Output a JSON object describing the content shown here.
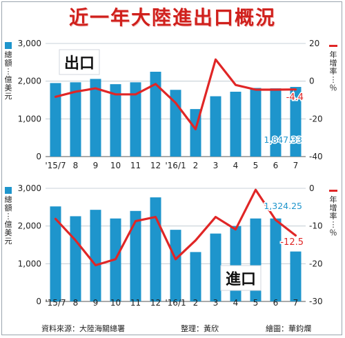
{
  "title": "近一年大陸進出口概況",
  "footer": {
    "source": "資料來源：大陸海關總署",
    "editor": "整理：黃欣",
    "artist": "繪圖：華鈞爛"
  },
  "legend": {
    "bar_label": "總額：億美元",
    "line_label": "年增率：％"
  },
  "colors": {
    "bar": "#1e95cc",
    "line": "#e02626",
    "title": "#d0201c"
  },
  "chart_data": [
    {
      "type": "bar",
      "title": "出口",
      "categories": [
        "'15/7",
        "8",
        "9",
        "10",
        "11",
        "12",
        "'16/1",
        "2",
        "3",
        "4",
        "5",
        "6",
        "7"
      ],
      "left_axis": {
        "ylim": [
          0,
          3000
        ],
        "ticks": [
          "0",
          "1,000",
          "2,000",
          "3,000"
        ]
      },
      "right_axis": {
        "ylim": [
          -40,
          20
        ],
        "ticks": [
          "-40",
          "-20",
          "0",
          "20"
        ]
      },
      "series": [
        {
          "name": "總額",
          "axis": "left",
          "kind": "bar",
          "values": [
            1950,
            1970,
            2060,
            1920,
            1970,
            2250,
            1770,
            1260,
            1600,
            1720,
            1820,
            1810,
            1847.33
          ]
        },
        {
          "name": "年增率",
          "axis": "right",
          "kind": "line",
          "values": [
            -8.3,
            -5.6,
            -3.8,
            -7,
            -7,
            -1.5,
            -11.5,
            -25.5,
            11.5,
            -2,
            -4.5,
            -4.5,
            -4.4
          ]
        }
      ],
      "value_labels": [
        "1,847.33",
        "-4.4"
      ]
    },
    {
      "type": "bar",
      "title": "進口",
      "categories": [
        "'15/7",
        "8",
        "9",
        "10",
        "11",
        "12",
        "'16/1",
        "2",
        "3",
        "4",
        "5",
        "6",
        "7"
      ],
      "left_axis": {
        "ylim": [
          0,
          3000
        ],
        "ticks": [
          "0",
          "1,000",
          "2,000",
          "3,000"
        ]
      },
      "right_axis": {
        "ylim": [
          -30,
          0
        ],
        "ticks": [
          "-30",
          "-20",
          "-10",
          "0"
        ]
      },
      "series": [
        {
          "name": "總額",
          "axis": "left",
          "kind": "bar",
          "values": [
            2520,
            2260,
            2430,
            2200,
            2400,
            2760,
            1900,
            1310,
            1800,
            2000,
            2200,
            2200,
            1324.25
          ]
        },
        {
          "name": "年增率",
          "axis": "right",
          "kind": "line",
          "values": [
            -8.1,
            -13.8,
            -20.4,
            -18.8,
            -8.7,
            -7.6,
            -18.8,
            -13.8,
            -7.6,
            -10.9,
            -0.4,
            -8.4,
            -12.5
          ]
        }
      ],
      "value_labels": [
        "1,324.25",
        "-12.5"
      ]
    }
  ]
}
